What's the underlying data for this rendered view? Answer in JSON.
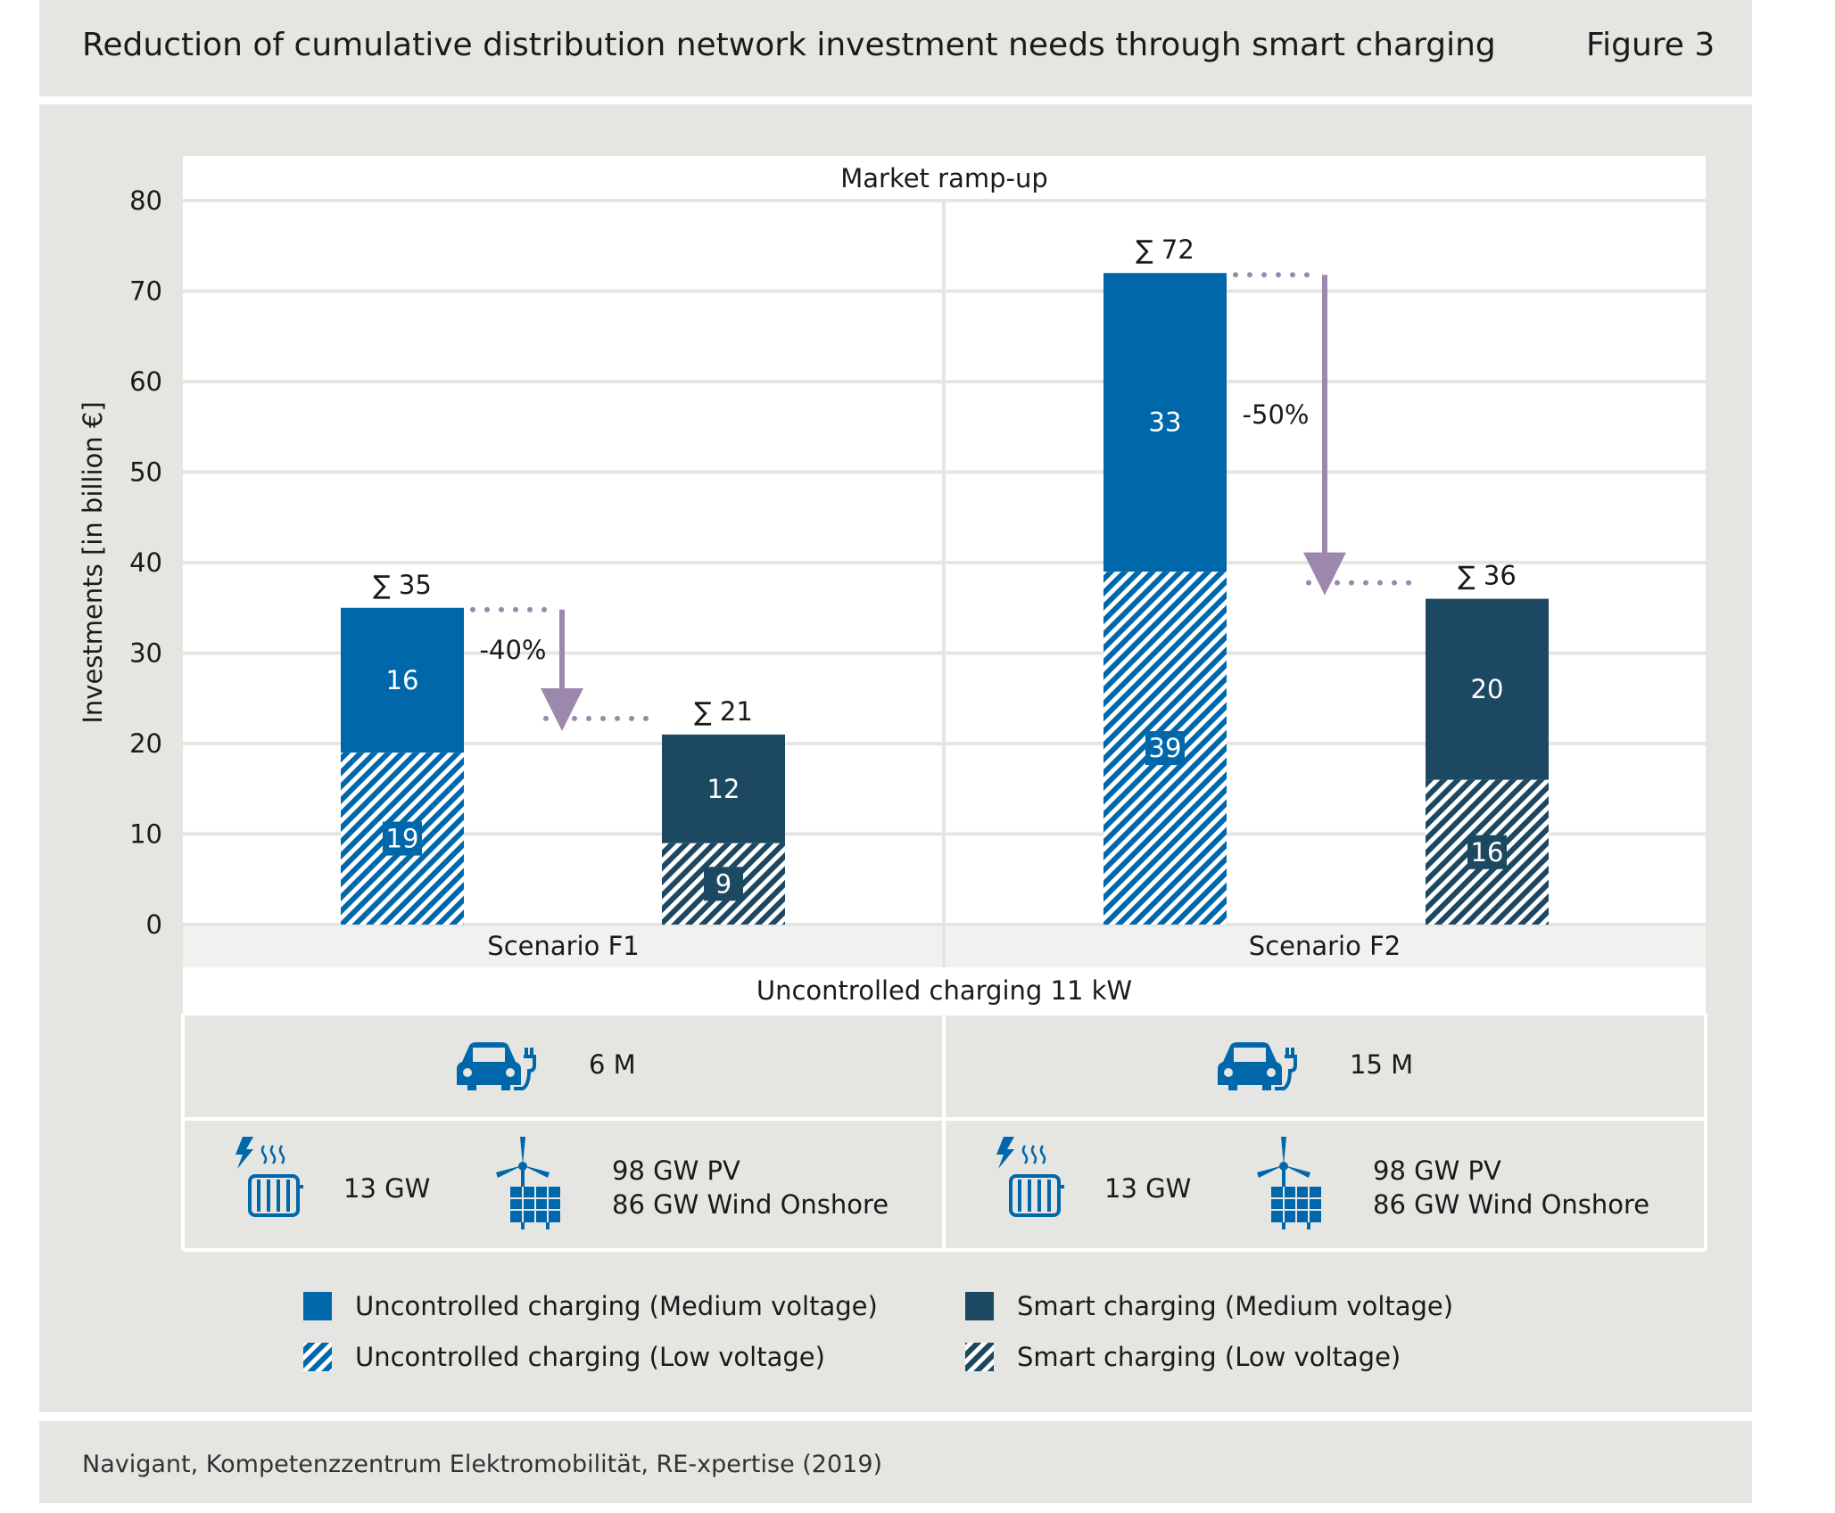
{
  "header": {
    "title": "Reduction of cumulative distribution network investment needs through smart charging",
    "figure_label": "Figure 3"
  },
  "footer": {
    "source": "Navigant, Kompetenzzentrum Elektromobilität, RE-xpertise (2019)"
  },
  "colors": {
    "uncontrolled": "#0068aa",
    "smart": "#1d4862",
    "panel_bg": "#e5e5e2",
    "arrow": "#9c88ac"
  },
  "chart_data": {
    "type": "bar",
    "stacked": true,
    "panel_title": "Market ramp-up",
    "ylabel": "Investments [in billion €]",
    "ylim": [
      0,
      80
    ],
    "yticks": [
      0,
      10,
      20,
      30,
      40,
      50,
      60,
      70,
      80
    ],
    "grid": true,
    "bottom_label": "Uncontrolled charging 11 kW",
    "scenarios": [
      {
        "label": "Scenario F1",
        "reduction_label": "-40%",
        "bars": [
          {
            "kind": "uncontrolled",
            "total_label": "∑ 35",
            "low_voltage": 19,
            "medium_voltage": 16,
            "low_label": "19",
            "medium_label": "16"
          },
          {
            "kind": "smart",
            "total_label": "∑ 21",
            "low_voltage": 9,
            "medium_voltage": 12,
            "low_label": "9",
            "medium_label": "12"
          }
        ],
        "vehicles": "6 M",
        "heat": "13 GW",
        "renewables_pv": "98 GW PV",
        "renewables_wind": "86 GW Wind Onshore"
      },
      {
        "label": "Scenario F2",
        "reduction_label": "-50%",
        "bars": [
          {
            "kind": "uncontrolled",
            "total_label": "∑ 72",
            "low_voltage": 39,
            "medium_voltage": 33,
            "low_label": "39",
            "medium_label": "33"
          },
          {
            "kind": "smart",
            "total_label": "∑ 36",
            "low_voltage": 16,
            "medium_voltage": 20,
            "low_label": "16",
            "medium_label": "20"
          }
        ],
        "vehicles": "15 M",
        "heat": "13 GW",
        "renewables_pv": "98 GW PV",
        "renewables_wind": "86 GW Wind Onshore"
      }
    ],
    "legend": [
      {
        "key": "uncontrolled-medium",
        "label": "Uncontrolled charging (Medium voltage)"
      },
      {
        "key": "smart-medium",
        "label": "Smart charging (Medium voltage)"
      },
      {
        "key": "uncontrolled-low",
        "label": "Uncontrolled charging (Low voltage)"
      },
      {
        "key": "smart-low",
        "label": "Smart charging (Low voltage)"
      }
    ],
    "legend_position": "bottom"
  }
}
